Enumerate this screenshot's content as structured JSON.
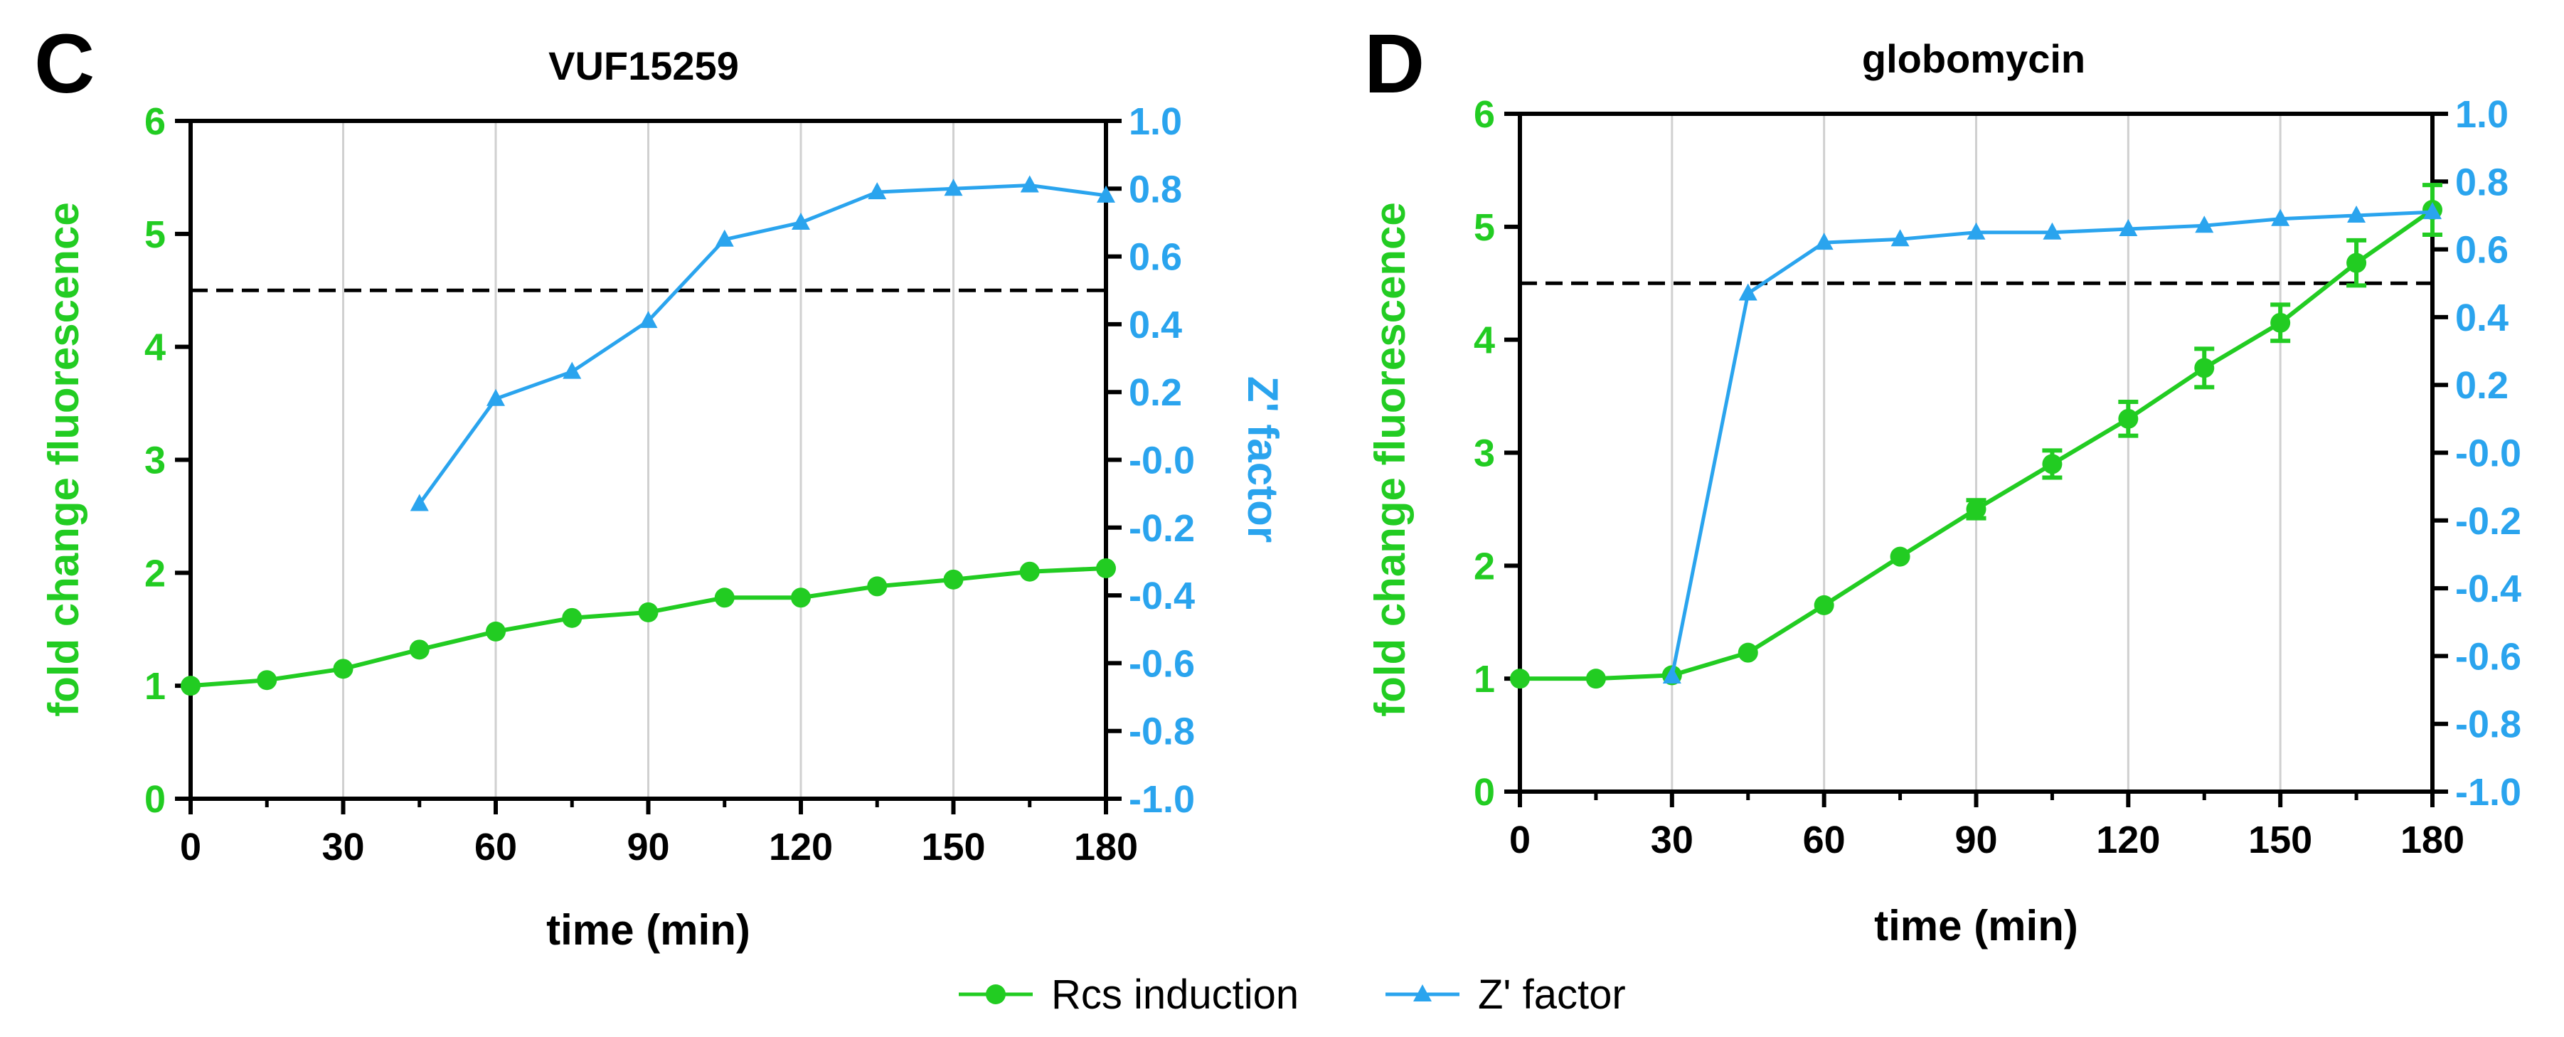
{
  "colors": {
    "rcs": "#22cc22",
    "zfactor": "#2aa4ee",
    "axis": "#000000",
    "grid": "#d0d0d0",
    "threshold": "#000000"
  },
  "legend": {
    "items": [
      {
        "label": "Rcs induction",
        "marker": "circle",
        "color": "#22cc22"
      },
      {
        "label": "Z' factor",
        "marker": "triangle",
        "color": "#2aa4ee"
      }
    ]
  },
  "chart_data": [
    {
      "panel": "C",
      "type": "line",
      "title": "VUF15259",
      "xlabel": "time (min)",
      "ylabel": "fold change fluorescence",
      "y2label": "Z' factor",
      "xlim": [
        0,
        180
      ],
      "ylim": [
        0,
        6
      ],
      "y2lim": [
        -1.0,
        1.0
      ],
      "xticks": [
        "0",
        "30",
        "60",
        "90",
        "120",
        "150",
        "180"
      ],
      "xtick_values": [
        0,
        30,
        60,
        90,
        120,
        150,
        180
      ],
      "yticks": [
        "0",
        "1",
        "2",
        "3",
        "4",
        "5",
        "6"
      ],
      "y2ticks": [
        "1.0",
        "0.8",
        "0.6",
        "0.4",
        "0.2",
        "-0.0",
        "-0.2",
        "-0.4",
        "-0.6",
        "-0.8",
        "-1.0"
      ],
      "y2tick_values": [
        1.0,
        0.8,
        0.6,
        0.4,
        0.2,
        0.0,
        -0.2,
        -0.4,
        -0.6,
        -0.8,
        -1.0
      ],
      "grid": "vertical",
      "threshold": 0.5,
      "series": [
        {
          "name": "Rcs induction",
          "axis": "left",
          "marker": "circle",
          "x": [
            0,
            15,
            30,
            45,
            60,
            75,
            90,
            105,
            120,
            135,
            150,
            165,
            180
          ],
          "values": [
            1.0,
            1.05,
            1.15,
            1.32,
            1.48,
            1.6,
            1.65,
            1.78,
            1.78,
            1.88,
            1.94,
            2.01,
            2.04
          ],
          "errors": [
            0,
            0,
            0,
            0,
            0,
            0,
            0,
            0,
            0,
            0,
            0,
            0,
            0
          ]
        },
        {
          "name": "Z' factor",
          "axis": "right",
          "marker": "triangle",
          "x": [
            45,
            60,
            75,
            90,
            105,
            120,
            135,
            150,
            165,
            180
          ],
          "values": [
            -0.13,
            0.18,
            0.26,
            0.41,
            0.65,
            0.7,
            0.79,
            0.8,
            0.81,
            0.78
          ]
        }
      ]
    },
    {
      "panel": "D",
      "type": "line",
      "title": "globomycin",
      "xlabel": "time (min)",
      "ylabel": "fold change fluorescence",
      "y2label": "",
      "xlim": [
        0,
        180
      ],
      "ylim": [
        0,
        6
      ],
      "y2lim": [
        -1.0,
        1.0
      ],
      "xticks": [
        "0",
        "30",
        "60",
        "90",
        "120",
        "150",
        "180"
      ],
      "xtick_values": [
        0,
        30,
        60,
        90,
        120,
        150,
        180
      ],
      "yticks": [
        "0",
        "1",
        "2",
        "3",
        "4",
        "5",
        "6"
      ],
      "y2ticks": [
        "1.0",
        "0.8",
        "0.6",
        "0.4",
        "0.2",
        "-0.0",
        "-0.2",
        "-0.4",
        "-0.6",
        "-0.8",
        "-1.0"
      ],
      "y2tick_values": [
        1.0,
        0.8,
        0.6,
        0.4,
        0.2,
        0.0,
        -0.2,
        -0.4,
        -0.6,
        -0.8,
        -1.0
      ],
      "grid": "vertical",
      "threshold": 0.5,
      "series": [
        {
          "name": "Rcs induction",
          "axis": "left",
          "marker": "circle",
          "x": [
            0,
            15,
            30,
            45,
            60,
            75,
            90,
            105,
            120,
            135,
            150,
            165,
            180
          ],
          "values": [
            1.0,
            1.0,
            1.03,
            1.23,
            1.65,
            2.08,
            2.5,
            2.9,
            3.3,
            3.75,
            4.15,
            4.68,
            5.15
          ],
          "errors": [
            0,
            0,
            0,
            0,
            0,
            0,
            0.08,
            0.12,
            0.15,
            0.17,
            0.16,
            0.2,
            0.22
          ]
        },
        {
          "name": "Z' factor",
          "axis": "right",
          "marker": "triangle",
          "x": [
            30,
            45,
            60,
            75,
            90,
            105,
            120,
            135,
            150,
            165,
            180
          ],
          "values": [
            -0.66,
            0.47,
            0.62,
            0.63,
            0.65,
            0.65,
            0.66,
            0.67,
            0.69,
            0.7,
            0.71
          ]
        }
      ]
    }
  ]
}
